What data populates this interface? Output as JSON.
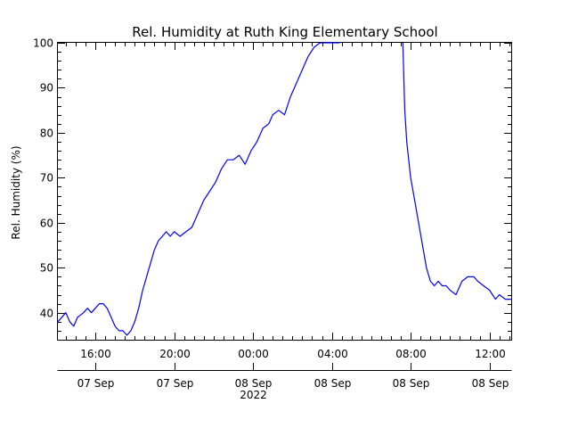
{
  "chart_data": {
    "type": "line",
    "title": "Rel. Humidity at Ruth King Elementary School",
    "xlabel": "",
    "ylabel": "Rel. Humidity (%)",
    "ylim": [
      34,
      100
    ],
    "y_ticks": [
      40,
      50,
      60,
      70,
      80,
      90,
      100
    ],
    "x_ticks": [
      {
        "hour": 16,
        "time": "16:00",
        "date": "07 Sep",
        "year": ""
      },
      {
        "hour": 20,
        "time": "20:00",
        "date": "07 Sep",
        "year": ""
      },
      {
        "hour": 24,
        "time": "00:00",
        "date": "08 Sep",
        "year": "2022"
      },
      {
        "hour": 28,
        "time": "04:00",
        "date": "08 Sep",
        "year": ""
      },
      {
        "hour": 32,
        "time": "08:00",
        "date": "08 Sep",
        "year": ""
      },
      {
        "hour": 36,
        "time": "12:00",
        "date": "08 Sep",
        "year": ""
      }
    ],
    "x_range_hours_since_07_Sep_00_00": [
      14.1,
      37.1
    ],
    "grid": false,
    "legend": "none",
    "series": [
      {
        "name": "",
        "color": "#0000ff",
        "x": [
          14.1,
          14.3,
          14.5,
          14.7,
          14.9,
          15.1,
          15.4,
          15.6,
          15.8,
          16.0,
          16.2,
          16.4,
          16.6,
          16.8,
          17.0,
          17.2,
          17.4,
          17.6,
          17.8,
          18.0,
          18.2,
          18.4,
          18.6,
          18.8,
          19.0,
          19.2,
          19.4,
          19.6,
          19.8,
          20.0,
          20.3,
          20.6,
          20.9,
          21.2,
          21.5,
          21.8,
          22.1,
          22.4,
          22.7,
          23.0,
          23.3,
          23.6,
          23.9,
          24.2,
          24.5,
          24.8,
          25.0,
          25.3,
          25.6,
          25.9,
          26.2,
          26.5,
          26.8,
          27.1,
          27.4,
          27.7,
          27.9,
          28.1,
          28.4,
          31.6,
          31.7,
          31.8,
          32.0,
          32.2,
          32.4,
          32.6,
          32.8,
          33.0,
          33.2,
          33.4,
          33.6,
          33.8,
          34.0,
          34.3,
          34.6,
          34.9,
          35.2,
          35.4,
          35.7,
          36.0,
          36.3,
          36.5,
          36.8,
          37.1
        ],
        "y": [
          38,
          39,
          40,
          38,
          37,
          39,
          40,
          41,
          40,
          41,
          42,
          42,
          41,
          39,
          37,
          36,
          36,
          35,
          36,
          38,
          41,
          45,
          48,
          51,
          54,
          56,
          57,
          58,
          57,
          58,
          57,
          58,
          59,
          62,
          65,
          67,
          69,
          72,
          74,
          74,
          75,
          73,
          76,
          78,
          81,
          82,
          84,
          85,
          84,
          88,
          91,
          94,
          97,
          99,
          100,
          100,
          100,
          100,
          100,
          100,
          85,
          78,
          70,
          65,
          60,
          55,
          50,
          47,
          46,
          47,
          46,
          46,
          45,
          44,
          47,
          48,
          48,
          47,
          46,
          45,
          43,
          44,
          43,
          43
        ]
      }
    ]
  }
}
